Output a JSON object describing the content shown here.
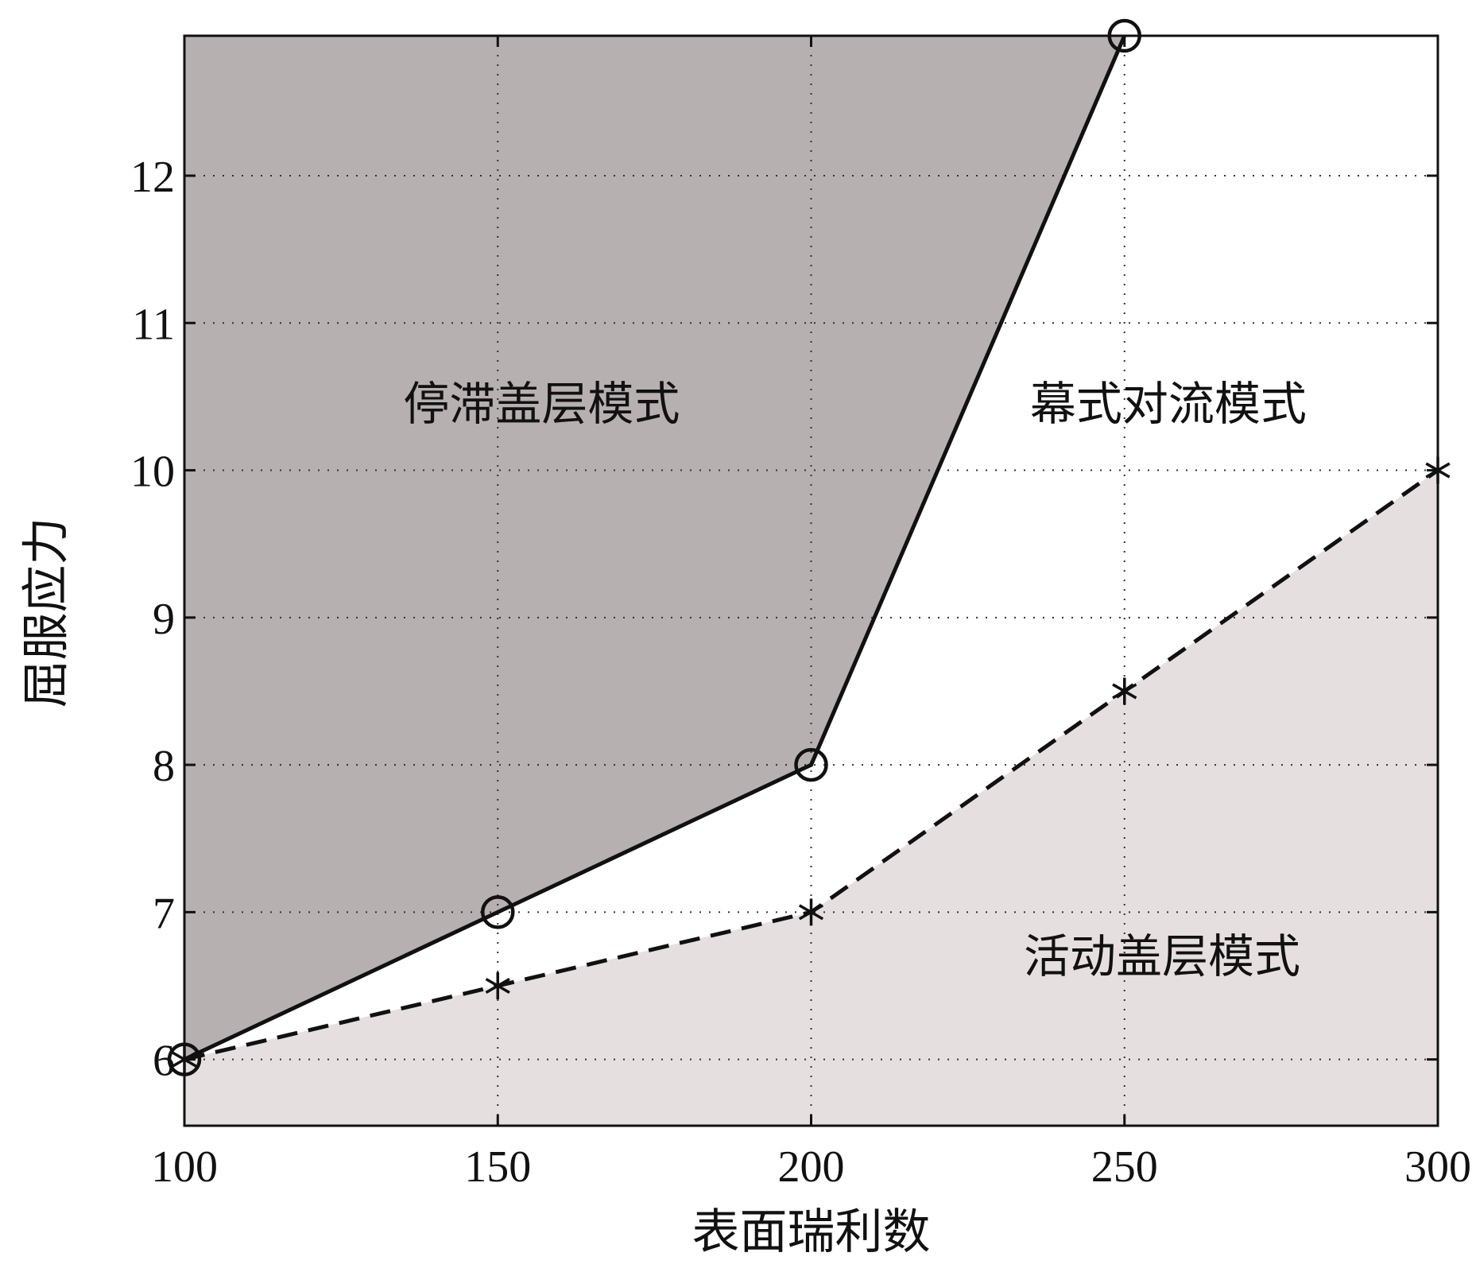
{
  "chart_data": {
    "type": "line",
    "xlabel": "表面瑞利数",
    "ylabel": "屈服应力",
    "xlim": [
      100,
      300
    ],
    "ylim": [
      5.55,
      12.95
    ],
    "xticks": [
      100,
      150,
      200,
      250,
      300
    ],
    "yticks": [
      6,
      7,
      8,
      9,
      10,
      11,
      12
    ],
    "grid": true,
    "series": [
      {
        "x": [
          100,
          150,
          200,
          250
        ],
        "y": [
          6.0,
          7.0,
          8.0,
          12.95
        ],
        "marker": "circle",
        "line_style": "solid",
        "color": "#111111"
      },
      {
        "x": [
          100,
          150,
          200,
          250,
          300
        ],
        "y": [
          6.0,
          6.5,
          7.0,
          8.5,
          10.0
        ],
        "marker": "asterisk",
        "line_style": "dashed",
        "color": "#111111"
      }
    ],
    "regions": {
      "stagnant_color": "#b7b0b1",
      "active_color": "#e5e0df",
      "mobile_color": "#ffffff"
    },
    "annotations": [
      {
        "text": "停滞盖层模式",
        "x": 157,
        "y": 10.45
      },
      {
        "text": "幕式对流模式",
        "x": 257,
        "y": 10.45
      },
      {
        "text": "活动盖层模式",
        "x": 256,
        "y": 6.7
      }
    ]
  }
}
